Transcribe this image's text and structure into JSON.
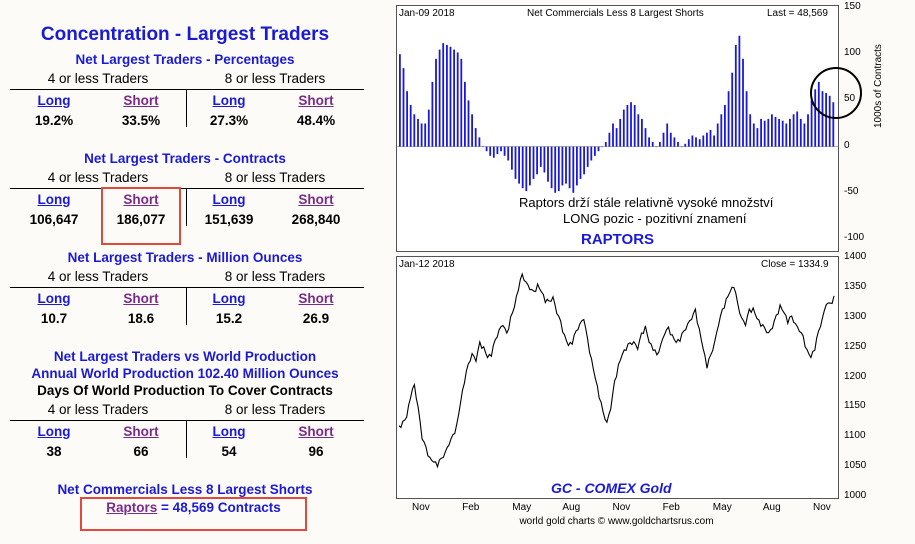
{
  "left": {
    "title": "Concentration - Largest Traders",
    "sections": [
      {
        "heading": "Net Largest Traders - Percentages",
        "g1": "4 or less Traders",
        "g2": "8 or less Traders",
        "values": [
          "19.2%",
          "33.5%",
          "27.3%",
          "48.4%"
        ]
      },
      {
        "heading": "Net Largest Traders - Contracts",
        "g1": "4 or less Traders",
        "g2": "8 or less Traders",
        "values": [
          "106,647",
          "186,077",
          "151,639",
          "268,840"
        ]
      },
      {
        "heading": "Net Largest Traders - Million Ounces",
        "g1": "4 or less Traders",
        "g2": "8 or less Traders",
        "values": [
          "10.7",
          "18.6",
          "15.2",
          "26.9"
        ]
      },
      {
        "heading": "",
        "g1": "4 or less Traders",
        "g2": "8 or less Traders",
        "values": [
          "38",
          "66",
          "54",
          "96"
        ]
      }
    ],
    "long_label": "Long",
    "short_label": "Short",
    "world_heading1": "Net Largest Traders vs World Production",
    "world_heading2": "Annual World Production 102.40 Million Ounces",
    "world_heading3": "Days Of World Production To Cover Contracts",
    "comm_heading": "Net Commercials Less 8 Largest Shorts",
    "raptors_link": "Raptors",
    "raptors_value": "= 48,569 Contracts"
  },
  "chart_data": [
    {
      "type": "bar",
      "title": "Net Commercials Less 8 Largest Shorts",
      "date_label": "Jan-09  2018",
      "last_label": "Last = 48,569",
      "ylabel": "1000s of Contracts",
      "ylim": [
        -100,
        150
      ],
      "yticks": [
        "150",
        "100",
        "50",
        "0",
        "-50",
        "-100"
      ],
      "annotation_line1": "Raptors drží stále relativně vysoké množství",
      "annotation_line2": "LONG pozic - pozitivní znamení",
      "label": "RAPTORS",
      "color": "#1a1ad6",
      "values": [
        100,
        85,
        60,
        45,
        35,
        30,
        25,
        25,
        40,
        70,
        95,
        105,
        112,
        110,
        108,
        105,
        102,
        95,
        70,
        50,
        35,
        20,
        10,
        0,
        -5,
        -10,
        -12,
        -8,
        -5,
        -10,
        -15,
        -25,
        -35,
        -40,
        -45,
        -48,
        -42,
        -35,
        -30,
        -22,
        -28,
        -38,
        -45,
        -50,
        -48,
        -42,
        -40,
        -45,
        -50,
        -42,
        -35,
        -30,
        -22,
        -15,
        -10,
        -5,
        0,
        5,
        15,
        25,
        20,
        30,
        40,
        45,
        48,
        45,
        35,
        30,
        20,
        10,
        5,
        0,
        5,
        15,
        25,
        15,
        10,
        5,
        0,
        3,
        8,
        12,
        10,
        8,
        12,
        15,
        18,
        12,
        25,
        35,
        45,
        60,
        80,
        110,
        120,
        95,
        60,
        35,
        25,
        20,
        30,
        28,
        30,
        35,
        32,
        30,
        28,
        25,
        30,
        35,
        38,
        30,
        25,
        35,
        50,
        62,
        70,
        60,
        58,
        55,
        48
      ]
    },
    {
      "type": "line",
      "date_label": "Jan-12  2018",
      "close_label": "Close = 1334.9",
      "label": "GC - COMEX Gold",
      "ylim": [
        1000,
        1400
      ],
      "yticks": [
        "1400",
        "1350",
        "1300",
        "1250",
        "1200",
        "1150",
        "1100",
        "1050",
        "1000"
      ],
      "xticks": [
        "Nov",
        "Feb",
        "May",
        "Aug",
        "Nov",
        "Feb",
        "May",
        "Aug",
        "Nov"
      ],
      "footer": "world gold charts © www.goldchartsrus.com",
      "values": [
        1115,
        1125,
        1135,
        1170,
        1185,
        1150,
        1100,
        1080,
        1065,
        1060,
        1055,
        1062,
        1075,
        1090,
        1100,
        1120,
        1160,
        1195,
        1220,
        1240,
        1230,
        1255,
        1250,
        1235,
        1240,
        1260,
        1280,
        1290,
        1270,
        1300,
        1320,
        1350,
        1370,
        1360,
        1350,
        1340,
        1355,
        1345,
        1330,
        1325,
        1335,
        1310,
        1290,
        1270,
        1255,
        1260,
        1275,
        1290,
        1300,
        1260,
        1230,
        1200,
        1170,
        1140,
        1125,
        1150,
        1190,
        1220,
        1240,
        1250,
        1255,
        1260,
        1250,
        1270,
        1285,
        1260,
        1250,
        1235,
        1255,
        1275,
        1280,
        1270,
        1260,
        1265,
        1275,
        1290,
        1300,
        1310,
        1280,
        1250,
        1220,
        1235,
        1260,
        1290,
        1310,
        1330,
        1345,
        1355,
        1320,
        1300,
        1290,
        1310,
        1315,
        1300,
        1290,
        1280,
        1275,
        1285,
        1300,
        1320,
        1310,
        1295,
        1300,
        1290,
        1280,
        1265,
        1245,
        1235,
        1250,
        1275,
        1300,
        1325,
        1320,
        1335
      ]
    }
  ]
}
